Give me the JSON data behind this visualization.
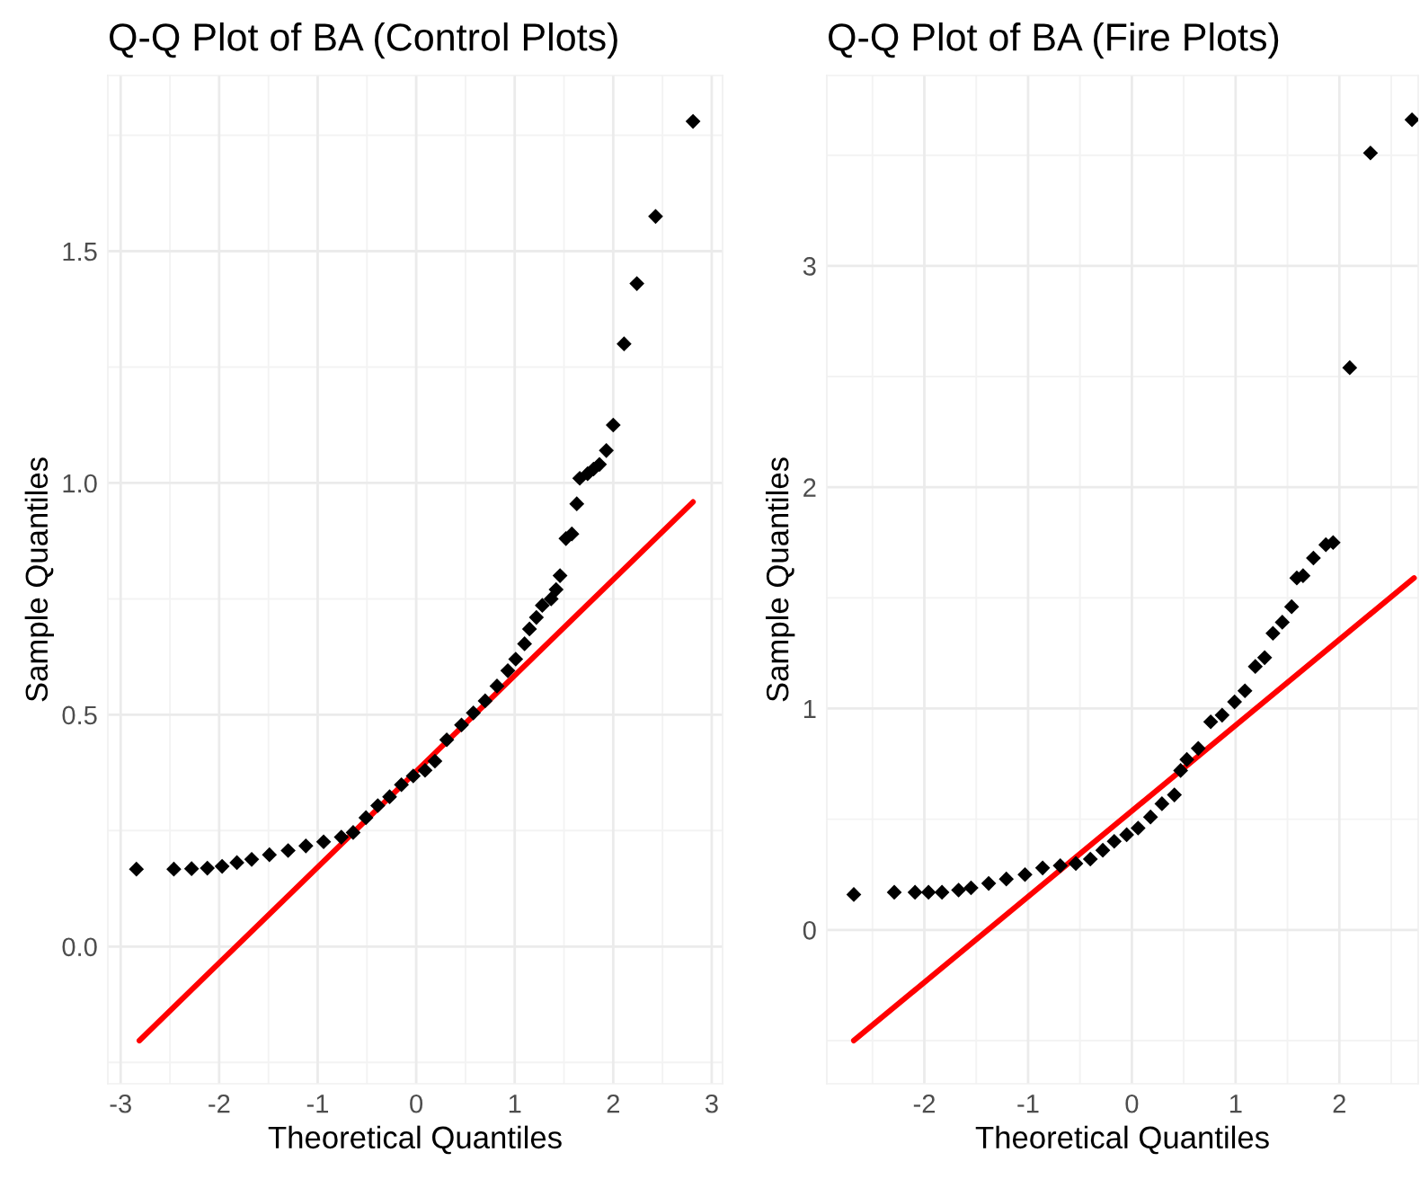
{
  "chart_data": [
    {
      "type": "scatter",
      "title": "Q-Q Plot of BA (Control Plots)",
      "xlabel": "Theoretical Quantiles",
      "ylabel": "Sample Quantiles",
      "xlim": [
        -3.13,
        3.11
      ],
      "ylim": [
        -0.296,
        1.879
      ],
      "xticks": [
        -3,
        -2,
        -1,
        0,
        1,
        2,
        3
      ],
      "yticks": [
        {
          "value": 0,
          "label": "0.0"
        },
        0.5,
        {
          "value": 1,
          "label": "1.0"
        },
        1.5
      ],
      "grid": true,
      "legend": false,
      "series": [
        {
          "color": "#000000",
          "marker": "diamond",
          "x": [
            -2.84,
            -2.46,
            -2.28,
            -2.12,
            -1.97,
            -1.82,
            -1.67,
            -1.49,
            -1.3,
            -1.12,
            -0.94,
            -0.76,
            -0.64,
            -0.51,
            -0.39,
            -0.27,
            -0.15,
            -0.03,
            0.09,
            0.19,
            0.31,
            0.46,
            0.58,
            0.7,
            0.82,
            0.93,
            1.01,
            1.1,
            1.15,
            1.22,
            1.28,
            1.37,
            1.42,
            1.46,
            1.52,
            1.58,
            1.63,
            1.66,
            1.74,
            1.8,
            1.86,
            1.93,
            2.0,
            2.11,
            2.24,
            2.43,
            2.81
          ],
          "values": [
            0.167,
            0.167,
            0.168,
            0.169,
            0.173,
            0.181,
            0.188,
            0.198,
            0.207,
            0.217,
            0.226,
            0.236,
            0.246,
            0.278,
            0.304,
            0.323,
            0.349,
            0.368,
            0.38,
            0.4,
            0.446,
            0.478,
            0.504,
            0.53,
            0.562,
            0.595,
            0.62,
            0.653,
            0.685,
            0.71,
            0.736,
            0.75,
            0.77,
            0.8,
            0.88,
            0.89,
            0.955,
            1.01,
            1.02,
            1.03,
            1.04,
            1.07,
            1.125,
            1.3,
            1.43,
            1.575,
            1.78
          ]
        },
        {
          "type": "line",
          "color": "#ff0000",
          "line_style": "solid",
          "x": [
            -2.81,
            2.81
          ],
          "values": [
            -0.203,
            0.959
          ]
        }
      ]
    },
    {
      "type": "scatter",
      "title": "Q-Q Plot of BA (Fire Plots)",
      "xlabel": "Theoretical Quantiles",
      "ylabel": "Sample Quantiles",
      "xlim": [
        -2.94,
        2.76
      ],
      "ylim": [
        -0.695,
        3.86
      ],
      "xticks": [
        -2,
        -1,
        0,
        1,
        2
      ],
      "yticks": [
        0,
        1,
        2,
        3
      ],
      "grid": true,
      "legend": false,
      "series": [
        {
          "color": "#000000",
          "marker": "diamond",
          "x": [
            -2.68,
            -2.29,
            -2.09,
            -1.96,
            -1.83,
            -1.67,
            -1.55,
            -1.38,
            -1.21,
            -1.03,
            -0.86,
            -0.69,
            -0.54,
            -0.4,
            -0.28,
            -0.17,
            -0.05,
            0.06,
            0.18,
            0.29,
            0.41,
            0.47,
            0.53,
            0.64,
            0.76,
            0.87,
            0.99,
            1.09,
            1.19,
            1.28,
            1.36,
            1.45,
            1.54,
            1.59,
            1.65,
            1.75,
            1.87,
            1.94,
            2.1,
            2.3,
            2.7
          ],
          "values": [
            0.16,
            0.17,
            0.17,
            0.17,
            0.17,
            0.18,
            0.19,
            0.21,
            0.23,
            0.25,
            0.28,
            0.29,
            0.3,
            0.32,
            0.36,
            0.4,
            0.43,
            0.46,
            0.51,
            0.57,
            0.61,
            0.72,
            0.77,
            0.82,
            0.94,
            0.97,
            1.03,
            1.08,
            1.19,
            1.23,
            1.34,
            1.39,
            1.46,
            1.59,
            1.6,
            1.68,
            1.74,
            1.75,
            2.54,
            3.51,
            3.66
          ]
        },
        {
          "type": "line",
          "color": "#ff0000",
          "line_style": "solid",
          "x": [
            -2.68,
            2.72
          ],
          "values": [
            -0.5,
            1.59
          ]
        }
      ]
    }
  ]
}
